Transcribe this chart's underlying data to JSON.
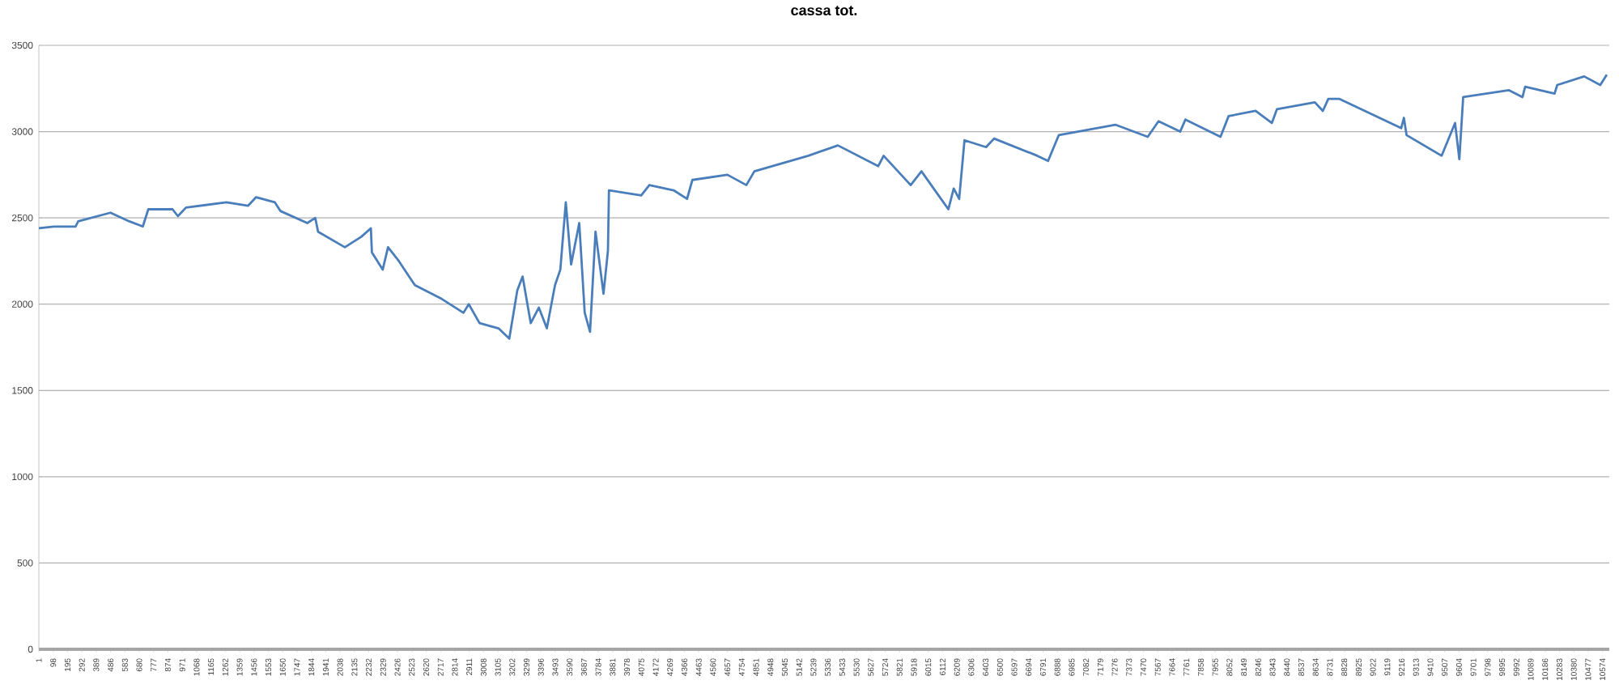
{
  "chart_data": {
    "type": "line",
    "title": "cassa tot.",
    "x": [
      1,
      103,
      249,
      267,
      485,
      613,
      704,
      741,
      905,
      941,
      996,
      1269,
      1415,
      1470,
      1597,
      1634,
      1816,
      1870,
      1889,
      2070,
      2180,
      2246,
      2253,
      2326,
      2362,
      2435,
      2544,
      2726,
      2872,
      2908,
      2981,
      3109,
      3182,
      3236,
      3272,
      3327,
      3382,
      3436,
      3491,
      3527,
      3564,
      3600,
      3655,
      3692,
      3728,
      3765,
      3819,
      3849,
      3856,
      4074,
      4129,
      4293,
      4384,
      4420,
      4657,
      4785,
      4839,
      5204,
      5404,
      5677,
      5713,
      5896,
      5969,
      6151,
      6187,
      6224,
      6260,
      6406,
      6460,
      6752,
      6825,
      6898,
      7280,
      7499,
      7572,
      7718,
      7754,
      7991,
      8046,
      8228,
      8338,
      8373,
      8629,
      8683,
      8720,
      8793,
      9213,
      9231,
      9249,
      9486,
      9577,
      9606,
      9632,
      9942,
      10033,
      10051,
      10250,
      10268,
      10450,
      10559,
      10603
    ],
    "series": [
      {
        "color": "#4a7ebb",
        "values": [
          2440,
          2450,
          2450,
          2480,
          2530,
          2480,
          2450,
          2550,
          2550,
          2510,
          2560,
          2590,
          2570,
          2620,
          2590,
          2540,
          2470,
          2500,
          2420,
          2330,
          2390,
          2440,
          2300,
          2200,
          2330,
          2250,
          2110,
          2030,
          1950,
          2000,
          1890,
          1860,
          1800,
          2080,
          2160,
          1890,
          1980,
          1860,
          2110,
          2200,
          2590,
          2230,
          2470,
          1950,
          1840,
          2420,
          2060,
          2310,
          2660,
          2630,
          2690,
          2660,
          2610,
          2720,
          2750,
          2690,
          2770,
          2860,
          2920,
          2800,
          2860,
          2690,
          2770,
          2550,
          2670,
          2610,
          2950,
          2910,
          2960,
          2860,
          2830,
          2980,
          3040,
          2970,
          3060,
          3000,
          3070,
          2970,
          3090,
          3120,
          3050,
          3130,
          3170,
          3120,
          3190,
          3190,
          3020,
          3080,
          2980,
          2860,
          3050,
          2840,
          3200,
          3240,
          3200,
          3260,
          3220,
          3270,
          3320,
          3270,
          3330
        ]
      }
    ],
    "xlim": [
      1,
      10620
    ],
    "ylim": [
      0,
      3500
    ],
    "xticks": [
      1,
      98,
      195,
      292,
      389,
      486,
      583,
      680,
      777,
      874,
      971,
      1068,
      1165,
      1262,
      1359,
      1456,
      1553,
      1650,
      1747,
      1844,
      1941,
      2038,
      2135,
      2232,
      2329,
      2426,
      2523,
      2620,
      2717,
      2814,
      2911,
      3008,
      3105,
      3202,
      3299,
      3396,
      3493,
      3590,
      3687,
      3784,
      3881,
      3978,
      4075,
      4172,
      4269,
      4366,
      4463,
      4560,
      4657,
      4754,
      4851,
      4948,
      5045,
      5142,
      5239,
      5336,
      5433,
      5530,
      5627,
      5724,
      5821,
      5918,
      6015,
      6112,
      6209,
      6306,
      6403,
      6500,
      6597,
      6694,
      6791,
      6888,
      6985,
      7082,
      7179,
      7276,
      7373,
      7470,
      7567,
      7664,
      7761,
      7858,
      7955,
      8052,
      8149,
      8246,
      8343,
      8440,
      8537,
      8634,
      8731,
      8828,
      8925,
      9022,
      9119,
      9216,
      9313,
      9410,
      9507,
      9604,
      9701,
      9798,
      9895,
      9992,
      10089,
      10186,
      10283,
      10380,
      10477,
      10574
    ],
    "yticks": [
      0,
      500,
      1000,
      1500,
      2000,
      2500,
      3000,
      3500
    ],
    "grid": "y",
    "marker": "none",
    "line_style": "solid"
  }
}
